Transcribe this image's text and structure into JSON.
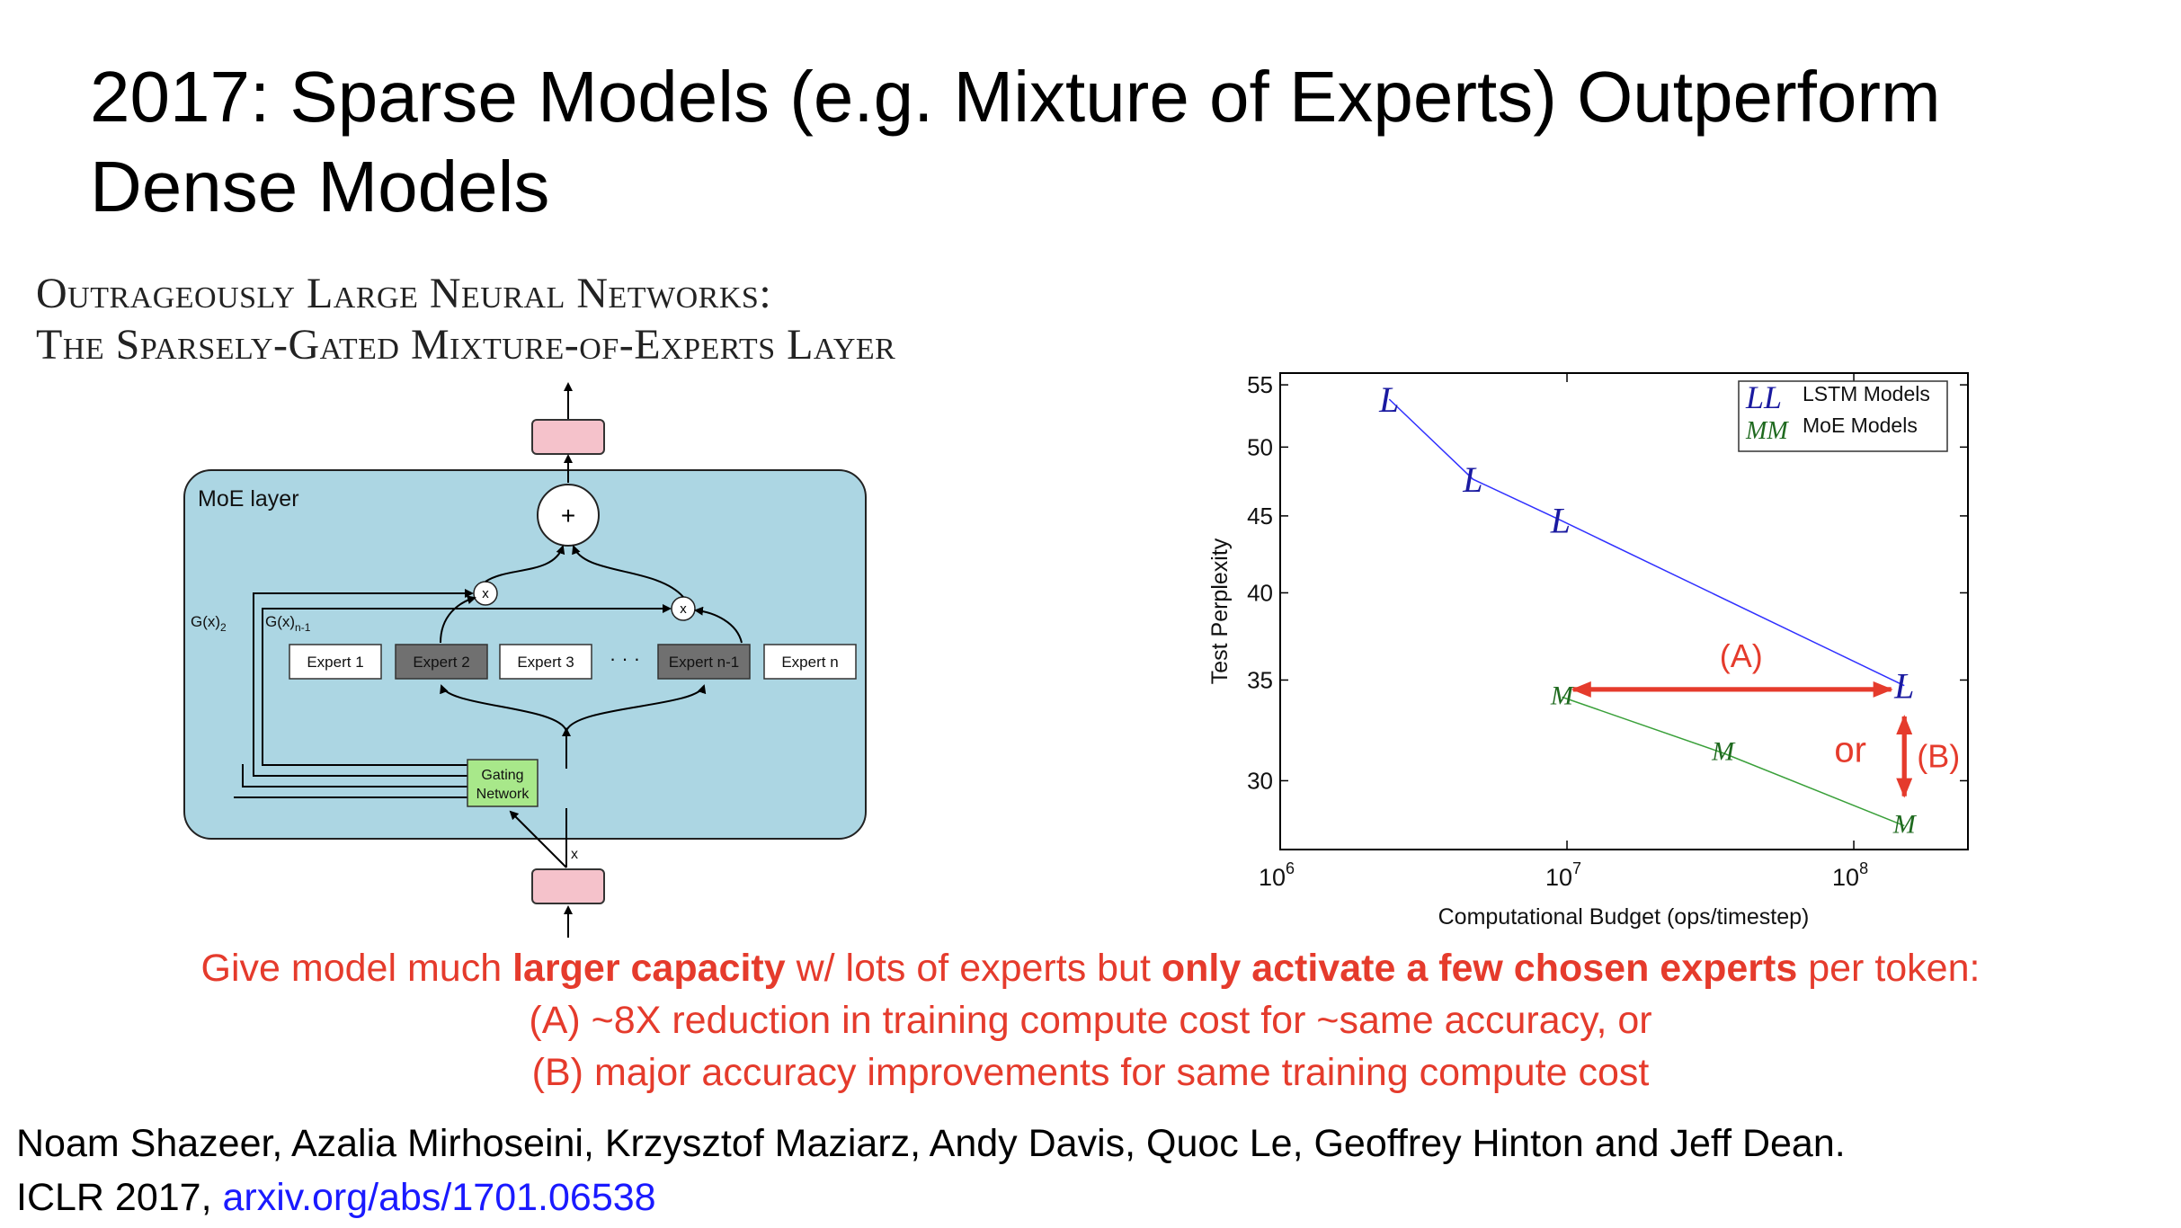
{
  "slide_title": "2017: Sparse Models (e.g. Mixture of Experts) Outperform Dense Models",
  "paper_title_line1": "Outrageously Large Neural Networks:",
  "paper_title_line2": "The Sparsely-Gated Mixture-of-Experts Layer",
  "diagram": {
    "layer_label": "MoE layer",
    "plus": "+",
    "times": "x",
    "gate_label_2": "G(x)",
    "gate_sub_2": "2",
    "gate_label_n1": "G(x)",
    "gate_sub_n1": "n-1",
    "experts": [
      {
        "label": "Expert 1",
        "active": false
      },
      {
        "label": "Expert 2",
        "active": true
      },
      {
        "label": "Expert 3",
        "active": false
      },
      {
        "label": "Expert n-1",
        "active": true
      },
      {
        "label": "Expert n",
        "active": false
      }
    ],
    "ellipsis": "· · ·",
    "gating_line1": "Gating",
    "gating_line2": "Network",
    "input_x": "x",
    "colors": {
      "layer_bg": "#acd6e3",
      "token_box": "#f5c2cb",
      "active_expert": "#707070",
      "gating_bg": "#a8e88a"
    }
  },
  "chart_data": {
    "type": "line",
    "xlabel": "Computational Budget (ops/timestep)",
    "ylabel": "Test Perplexity",
    "x_scale": "log",
    "y_scale": "log",
    "xlim": [
      1000000,
      250000000
    ],
    "ylim": [
      27,
      56
    ],
    "xticks": [
      {
        "value": 1000000,
        "base": "10",
        "exp": "6"
      },
      {
        "value": 10000000,
        "base": "10",
        "exp": "7"
      },
      {
        "value": 100000000,
        "base": "10",
        "exp": "8"
      }
    ],
    "yticks": [
      30,
      35,
      40,
      45,
      50,
      55
    ],
    "legend_position": "top-right",
    "grid": false,
    "series": [
      {
        "name": "LSTM Models",
        "marker": "L",
        "color": "#3030ff",
        "marker_color": "#1a1aa0",
        "points": [
          [
            2400000,
            53.8
          ],
          [
            4700000,
            47.6
          ],
          [
            9500000,
            44.7
          ],
          [
            150000000,
            34.7
          ]
        ]
      },
      {
        "name": "MoE Models",
        "marker": "M",
        "color": "#3aa03a",
        "marker_color": "#1f6a1f",
        "points": [
          [
            9600000,
            34.1
          ],
          [
            35000000,
            31.3
          ],
          [
            150000000,
            28.0
          ]
        ]
      }
    ],
    "legend_markers": {
      "LSTM Models": "LL",
      "MoE Models": "MM"
    },
    "annotations": [
      {
        "label": "(A)",
        "color": "#e53b2c",
        "from": [
          10500000,
          34.5
        ],
        "to": [
          135000000,
          34.5
        ]
      },
      {
        "label": "or",
        "color": "#e53b2c"
      },
      {
        "label": "(B)",
        "color": "#e53b2c",
        "from": [
          150000000,
          33.1
        ],
        "to": [
          150000000,
          29.3
        ]
      }
    ]
  },
  "caption": {
    "l1_a": "Give model much ",
    "l1_b": "larger capacity",
    "l1_c": " w/ lots of experts but ",
    "l1_d": "only activate a few chosen experts",
    "l1_e": " per token:",
    "l2": "(A) ~8X reduction in training compute cost for ~same accuracy, or",
    "l3": "(B) major accuracy improvements for same training compute cost"
  },
  "citation": {
    "authors": "Noam Shazeer, Azalia Mirhoseini, Krzysztof Maziarz, Andy Davis, Quoc Le, Geoffrey Hinton and Jeff Dean.",
    "venue": "ICLR 2017, ",
    "link": "arxiv.org/abs/1701.06538"
  }
}
